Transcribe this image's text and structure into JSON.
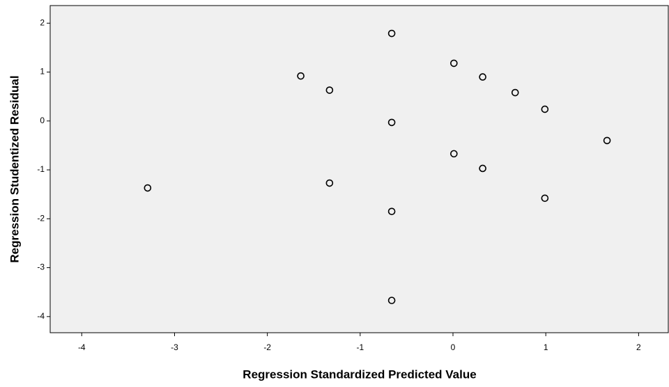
{
  "chart_data": {
    "type": "scatter",
    "x_label": "Regression Standardized Predicted Value",
    "y_label": "Regression Studentized Residual",
    "x": [
      -3.29,
      -1.64,
      -1.33,
      -1.33,
      -0.66,
      -0.66,
      -0.66,
      -0.66,
      0.01,
      0.01,
      0.32,
      0.32,
      0.67,
      0.99,
      0.99,
      1.66
    ],
    "values": [
      -1.37,
      0.92,
      0.63,
      -1.27,
      1.79,
      -0.03,
      -1.85,
      -3.67,
      1.18,
      -0.67,
      0.9,
      -0.97,
      0.58,
      0.24,
      -1.58,
      -0.4
    ],
    "color": "#000000",
    "xlim": [
      -4.34,
      2.32
    ],
    "ylim": [
      -4.33,
      2.36
    ],
    "xticks": [
      -4,
      -3,
      -2,
      -1,
      0,
      1,
      2
    ],
    "yticks": [
      -4,
      -3,
      -2,
      -1,
      0,
      1,
      2
    ]
  }
}
